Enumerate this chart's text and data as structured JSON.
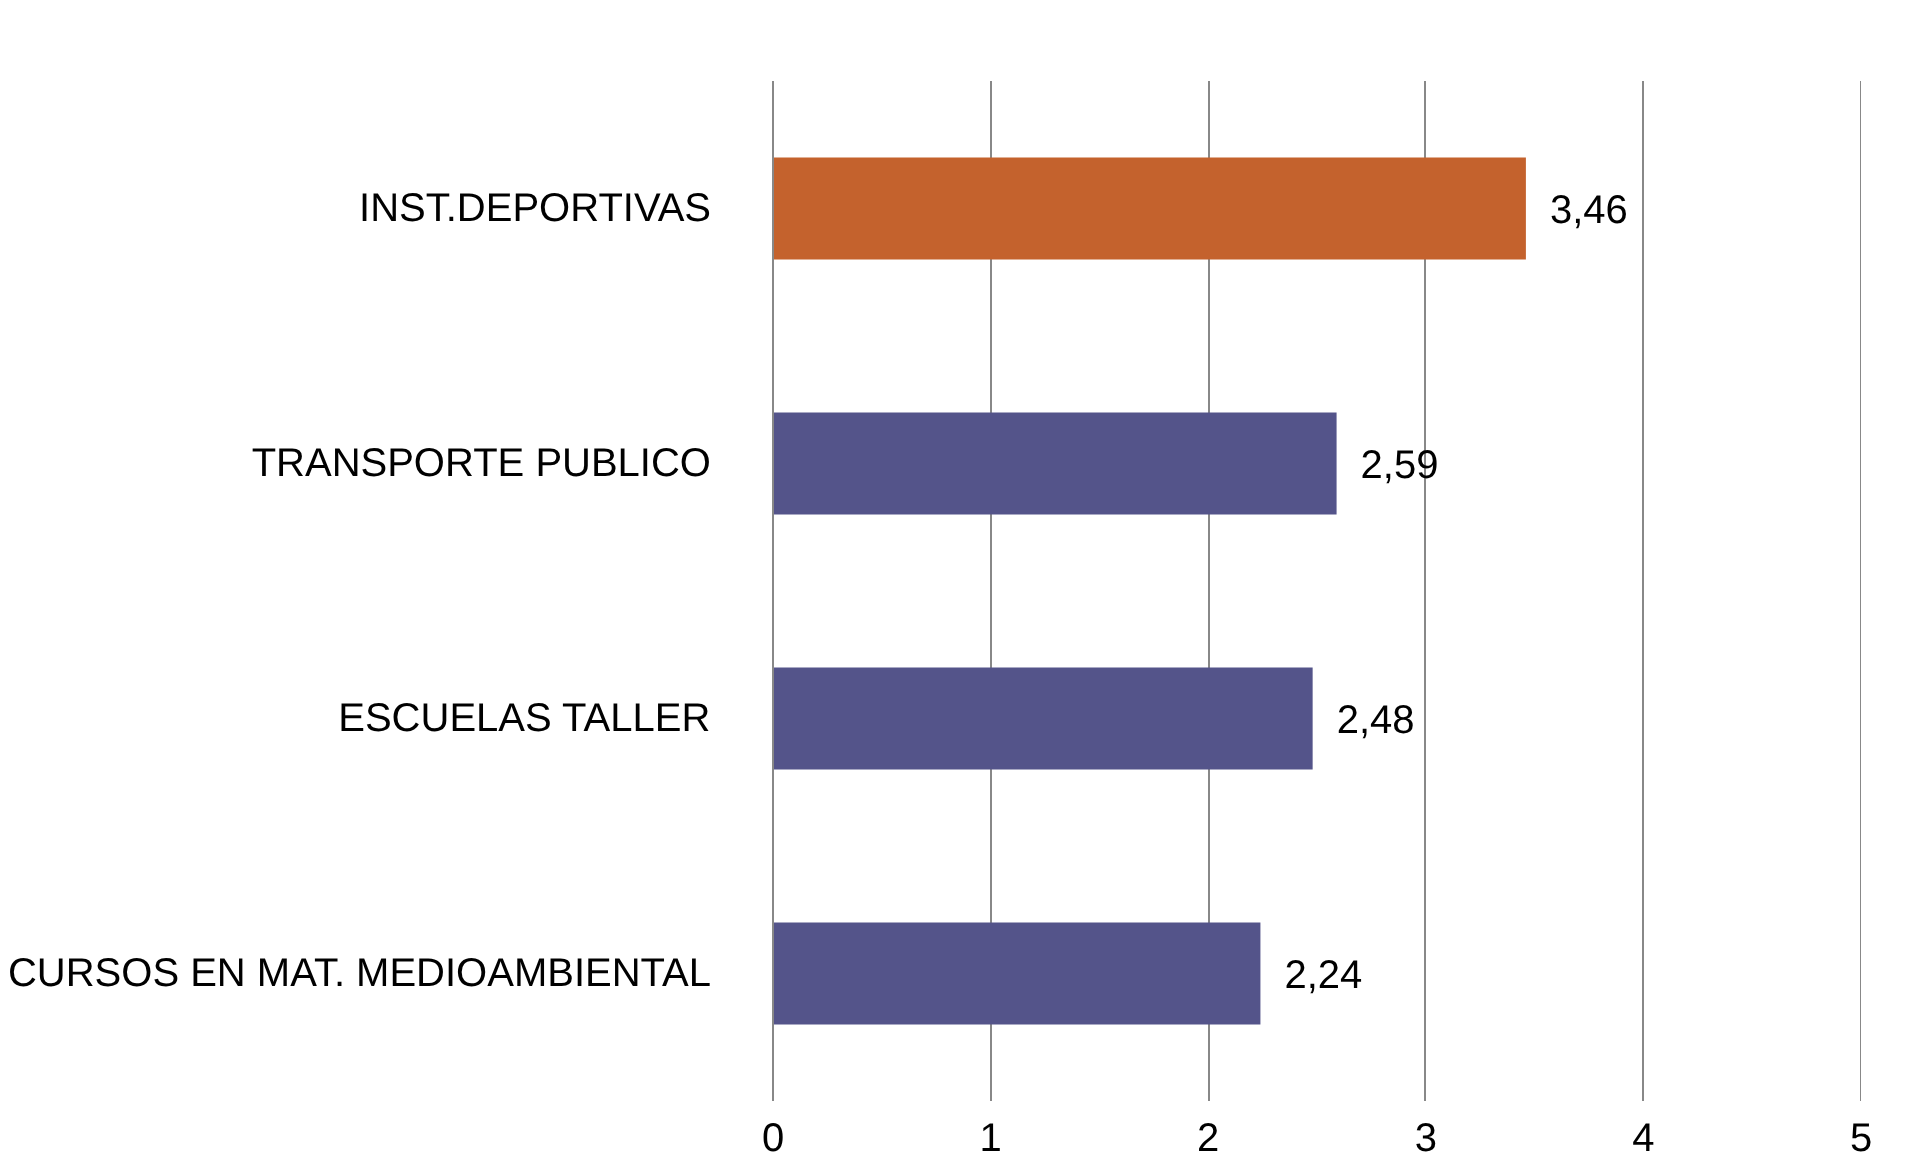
{
  "chart_data": {
    "type": "bar",
    "orientation": "horizontal",
    "categories": [
      "INST.DEPORTIVAS",
      "TRANSPORTE PUBLICO",
      "ESCUELAS TALLER",
      "CURSOS EN MAT. MEDIOAMBIENTAL"
    ],
    "values": [
      3.46,
      2.59,
      2.48,
      2.24
    ],
    "value_labels": [
      "3,46",
      "2,59",
      "2,48",
      "2,24"
    ],
    "colors": [
      "#c4622d",
      "#54548a",
      "#54548a",
      "#54548a"
    ],
    "xlim": [
      0,
      5
    ],
    "xticks": [
      0,
      1,
      2,
      3,
      4,
      5
    ],
    "grid": "x"
  }
}
